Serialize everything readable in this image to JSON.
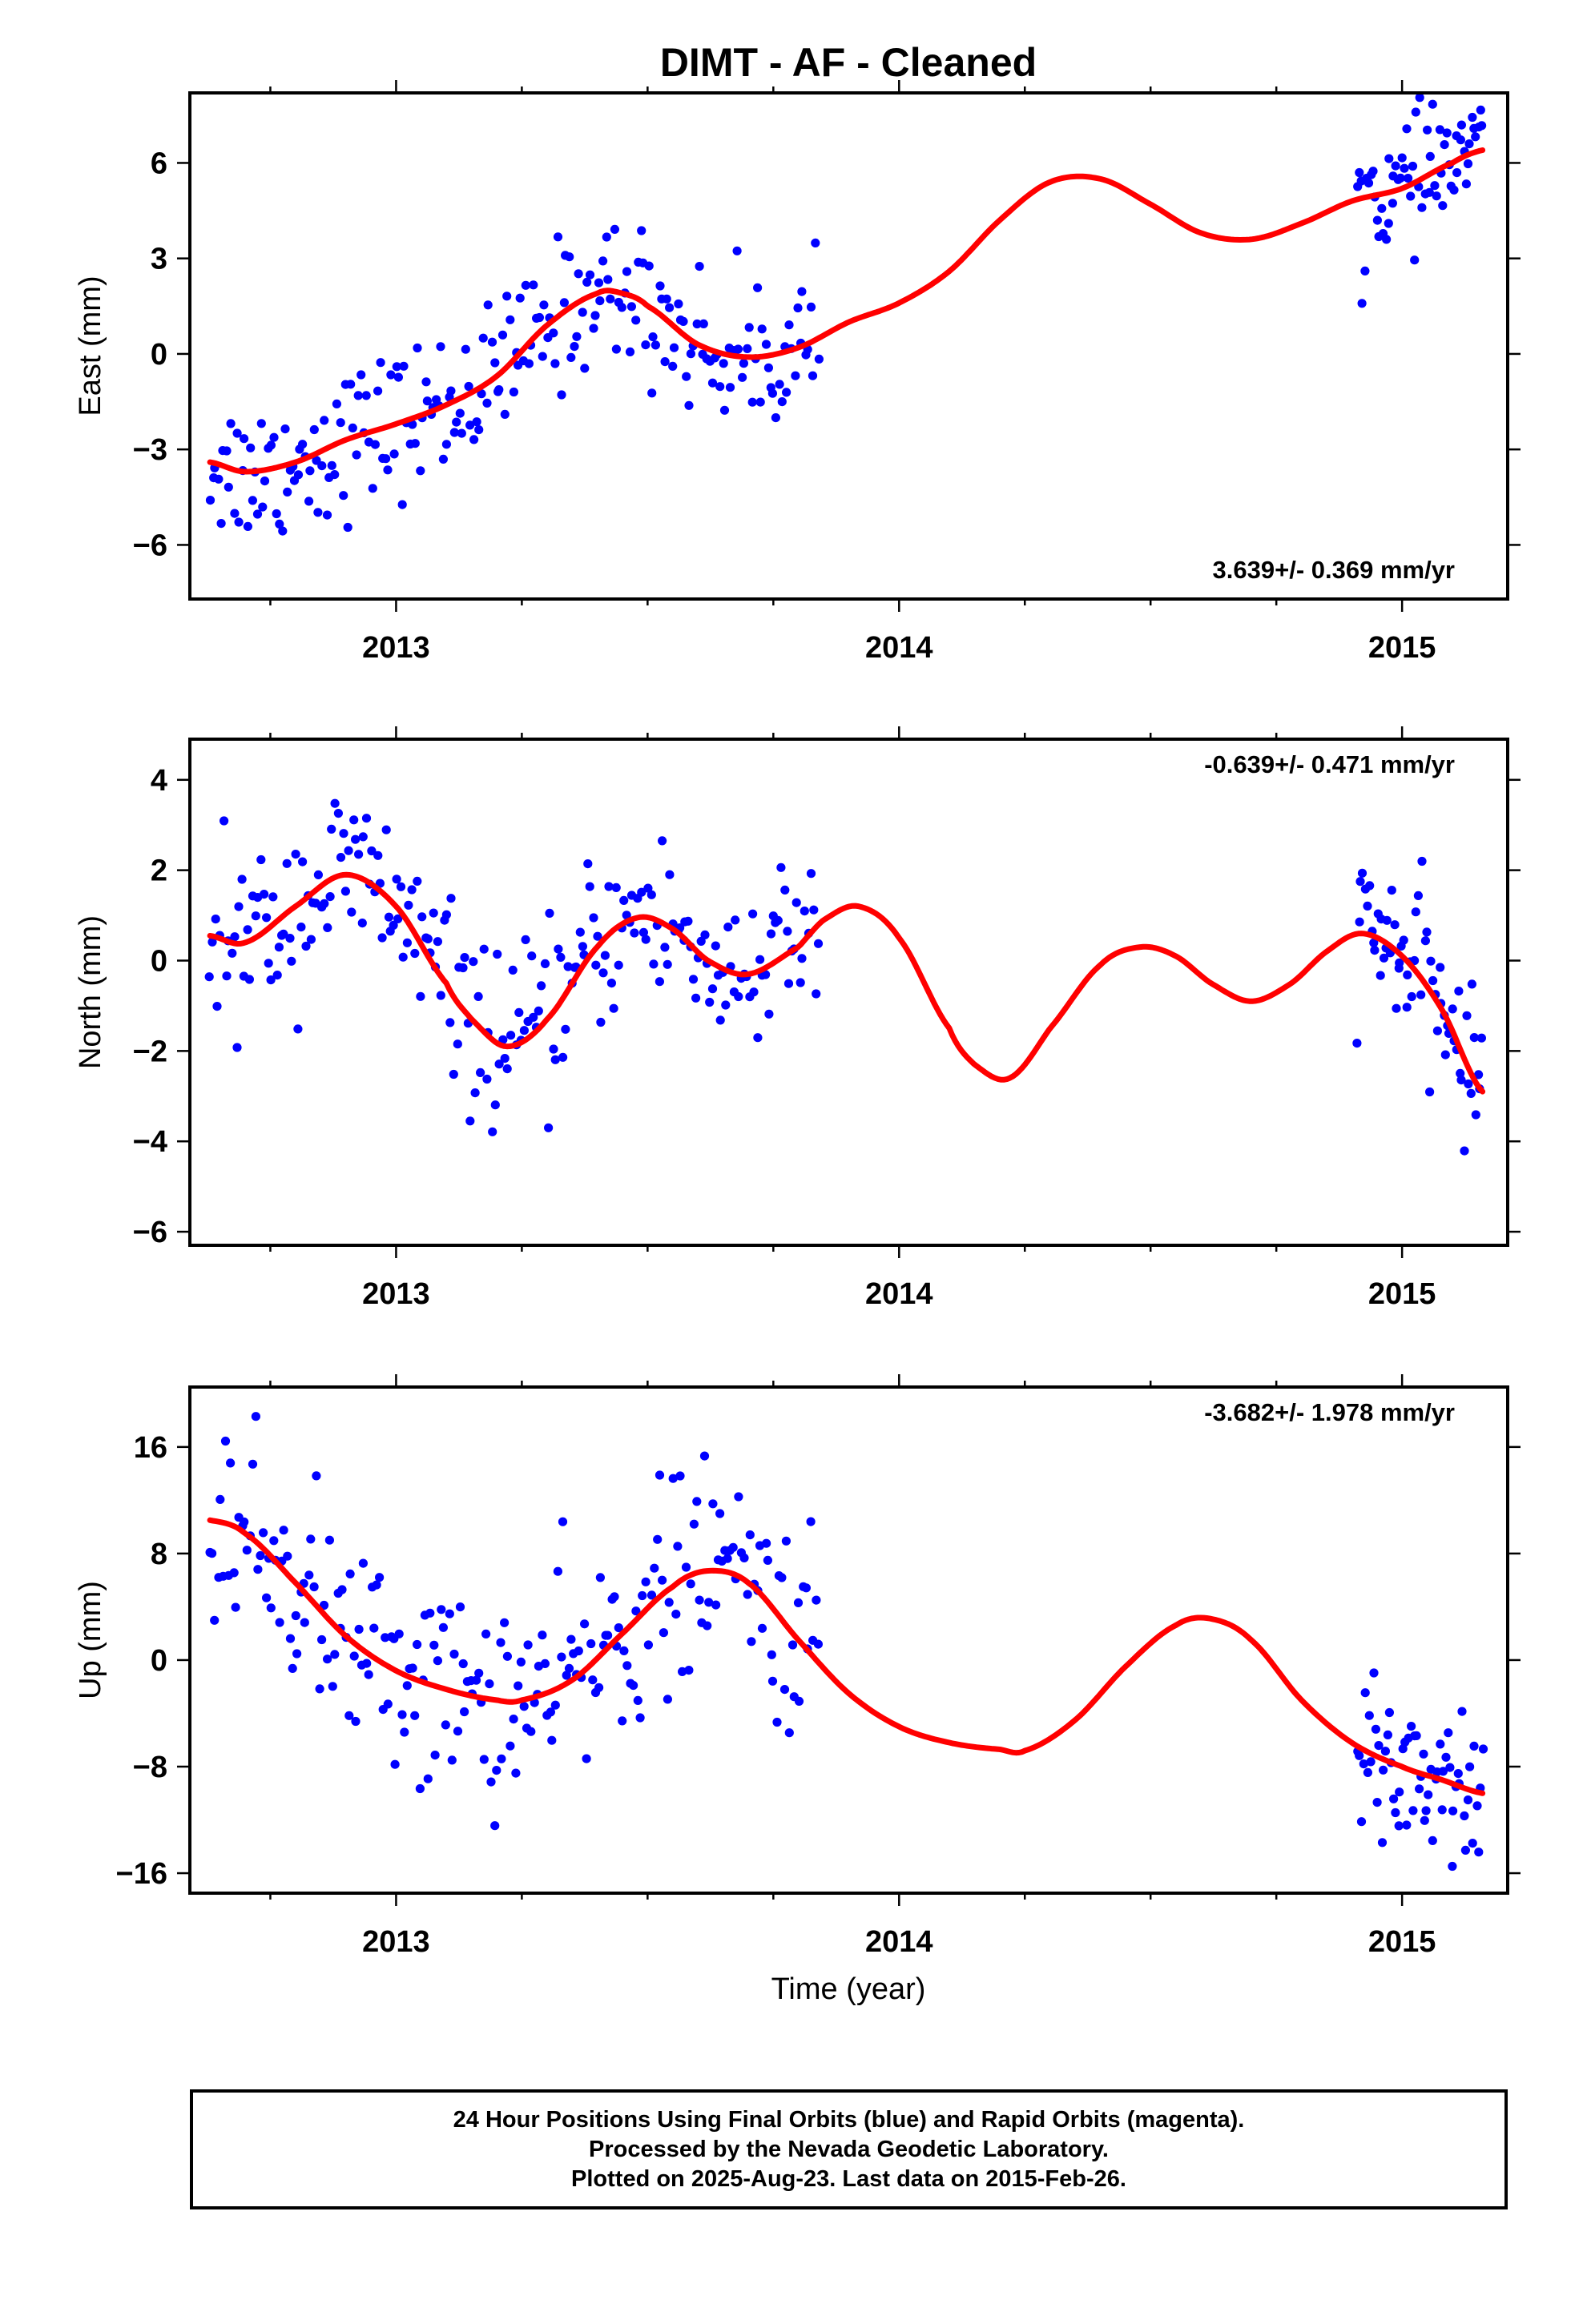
{
  "title": "DIMT  - AF - Cleaned",
  "xlabel": "Time (year)",
  "colors": {
    "data": "#0000ff",
    "model": "#ff0000",
    "frame": "#000000"
  },
  "footer": {
    "line1": "24 Hour Positions Using Final Orbits (blue) and Rapid Orbits (magenta).",
    "line2": "Processed by the Nevada Geodetic Laboratory.",
    "line3": "Plotted on 2025-Aug-23. Last data on 2015-Feb-26."
  },
  "chart_data": [
    {
      "type": "scatter",
      "ylabel": "East (mm)",
      "rate_label": "3.639+/- 0.369 mm/yr",
      "xlim": [
        2012.59,
        2015.21
      ],
      "ylim": [
        -7.7,
        8.2
      ],
      "xticks": [
        "2013",
        "2014",
        "2015"
      ],
      "yticks": [
        6,
        3,
        0,
        -3,
        -6
      ],
      "grid": false,
      "data_segments": [
        {
          "x_start": 2012.63,
          "x_end": 2013.84,
          "n": 230,
          "scatter": 1.15
        },
        {
          "x_start": 2014.91,
          "x_end": 2015.16,
          "n": 62,
          "scatter": 0.95
        }
      ],
      "model_curve": {
        "x": [
          2012.63,
          2012.7,
          2012.8,
          2012.9,
          2013.0,
          2013.1,
          2013.2,
          2013.3,
          2013.4,
          2013.45,
          2013.5,
          2013.6,
          2013.7,
          2013.8,
          2013.9,
          2014.0,
          2014.1,
          2014.2,
          2014.3,
          2014.4,
          2014.5,
          2014.6,
          2014.7,
          2014.8,
          2014.9,
          2015.0,
          2015.1,
          2015.16
        ],
        "y": [
          -3.4,
          -3.7,
          -3.4,
          -2.7,
          -2.2,
          -1.6,
          -0.7,
          0.9,
          1.9,
          1.9,
          1.5,
          0.3,
          -0.1,
          0.2,
          1.0,
          1.6,
          2.6,
          4.2,
          5.4,
          5.5,
          4.7,
          3.8,
          3.6,
          4.1,
          4.8,
          5.2,
          6.0,
          6.4
        ]
      }
    },
    {
      "type": "scatter",
      "ylabel": "North (mm)",
      "rate_label": "-0.639+/- 0.471 mm/yr",
      "xlim": [
        2012.59,
        2015.21
      ],
      "ylim": [
        -6.3,
        4.9
      ],
      "xticks": [
        "2013",
        "2014",
        "2015"
      ],
      "yticks": [
        4,
        2,
        0,
        -2,
        -4,
        -6
      ],
      "grid": false,
      "data_segments": [
        {
          "x_start": 2012.63,
          "x_end": 2013.84,
          "n": 230,
          "scatter": 0.95
        },
        {
          "x_start": 2014.91,
          "x_end": 2015.16,
          "n": 62,
          "scatter": 0.85
        }
      ],
      "model_curve": {
        "x": [
          2012.63,
          2012.7,
          2012.8,
          2012.9,
          2013.0,
          2013.1,
          2013.15,
          2013.22,
          2013.3,
          2013.4,
          2013.48,
          2013.55,
          2013.62,
          2013.7,
          2013.8,
          2013.85,
          2013.92,
          2014.0,
          2014.1,
          2014.15,
          2014.22,
          2014.3,
          2014.4,
          2014.48,
          2014.55,
          2014.62,
          2014.7,
          2014.78,
          2014.85,
          2014.92,
          2015.0,
          2015.08,
          2015.16
        ],
        "y": [
          0.55,
          0.4,
          1.2,
          1.9,
          1.2,
          -0.5,
          -1.3,
          -1.9,
          -1.3,
          0.3,
          0.95,
          0.7,
          0.0,
          -0.3,
          0.3,
          0.9,
          1.2,
          0.5,
          -1.5,
          -2.3,
          -2.6,
          -1.5,
          -0.1,
          0.3,
          0.1,
          -0.5,
          -0.9,
          -0.5,
          0.2,
          0.6,
          0.1,
          -1.1,
          -2.9
        ]
      }
    },
    {
      "type": "scatter",
      "ylabel": "Up (mm)",
      "rate_label": "-3.682+/- 1.978 mm/yr",
      "xlim": [
        2012.59,
        2015.21
      ],
      "ylim": [
        -17.5,
        20.5
      ],
      "xticks": [
        "2013",
        "2014",
        "2015"
      ],
      "yticks": [
        16,
        8,
        0,
        -8,
        -16
      ],
      "grid": false,
      "data_segments": [
        {
          "x_start": 2012.63,
          "x_end": 2013.84,
          "n": 230,
          "scatter": 3.9
        },
        {
          "x_start": 2014.91,
          "x_end": 2015.16,
          "n": 62,
          "scatter": 3.6
        }
      ],
      "model_curve": {
        "x": [
          2012.63,
          2012.7,
          2012.8,
          2012.9,
          2013.0,
          2013.1,
          2013.2,
          2013.25,
          2013.35,
          2013.45,
          2013.55,
          2013.62,
          2013.7,
          2013.8,
          2013.9,
          2014.0,
          2014.1,
          2014.2,
          2014.25,
          2014.35,
          2014.45,
          2014.55,
          2014.62,
          2014.7,
          2014.8,
          2014.9,
          2015.0,
          2015.08,
          2015.16
        ],
        "y": [
          10.5,
          9.5,
          5.8,
          1.8,
          -0.8,
          -2.2,
          -3.0,
          -3.0,
          -1.5,
          2.0,
          5.5,
          6.7,
          5.8,
          1.5,
          -2.5,
          -5.0,
          -6.2,
          -6.7,
          -6.8,
          -4.5,
          -0.5,
          2.6,
          3.1,
          1.5,
          -3.0,
          -6.2,
          -8.0,
          -9.0,
          -10.0
        ]
      }
    }
  ]
}
